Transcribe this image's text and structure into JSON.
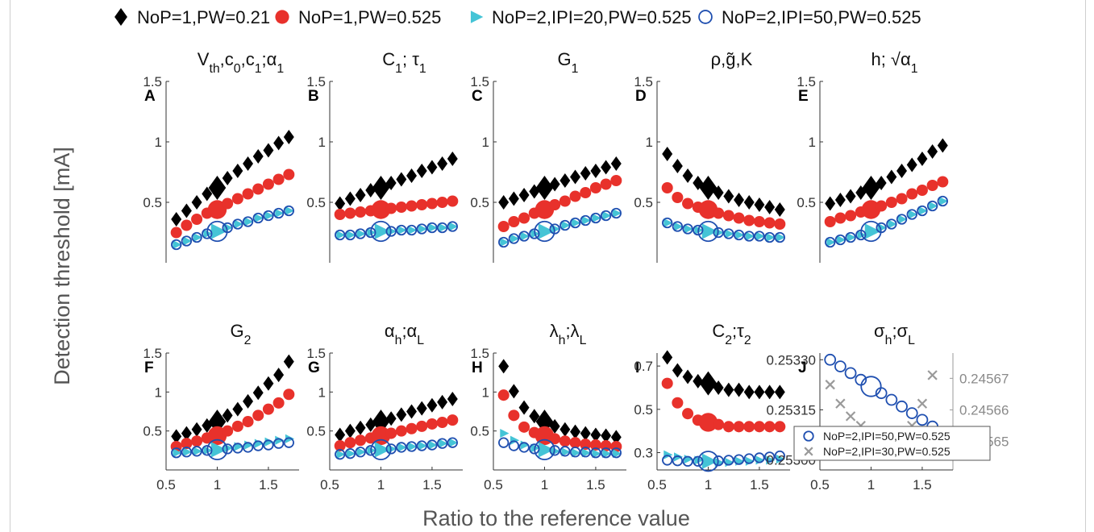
{
  "figure": {
    "ylabel": "Detection threshold [mA]",
    "xlabel": "Ratio to the reference value"
  },
  "legend": {
    "items": [
      {
        "label": "NoP=1,PW=0.21",
        "marker": "diamond",
        "color": "#000000"
      },
      {
        "label": "NoP=1,PW=0.525",
        "marker": "filled-circle",
        "color": "#e8312b"
      },
      {
        "label": "NoP=2,IPI=20,PW=0.525",
        "marker": "triangle",
        "color": "#45c4d6"
      },
      {
        "label": "NoP=2,IPI=50,PW=0.525",
        "marker": "open-circle",
        "color": "#1f4fb0"
      }
    ]
  },
  "chart_data": [
    {
      "type": "scatter",
      "panel": "A",
      "title": "V_th,c_0,c_1;α_1",
      "ylim": [
        0,
        1.5
      ],
      "xlim": [
        0.5,
        1.8
      ],
      "yticks": [
        "1.5",
        "1",
        "0.5"
      ],
      "x": [
        0.6,
        0.7,
        0.8,
        0.9,
        1.0,
        1.1,
        1.2,
        1.3,
        1.4,
        1.5,
        1.6,
        1.7
      ],
      "series": [
        {
          "name": "NoP=1,PW=0.21",
          "values": [
            0.36,
            0.43,
            0.5,
            0.57,
            0.62,
            0.7,
            0.76,
            0.82,
            0.88,
            0.93,
            0.99,
            1.04
          ]
        },
        {
          "name": "NoP=1,PW=0.525",
          "values": [
            0.25,
            0.31,
            0.36,
            0.41,
            0.44,
            0.49,
            0.53,
            0.57,
            0.61,
            0.65,
            0.69,
            0.73
          ]
        },
        {
          "name": "NoP=2,IPI=20,PW=0.525",
          "values": [
            0.15,
            0.18,
            0.21,
            0.24,
            0.26,
            0.29,
            0.32,
            0.34,
            0.37,
            0.39,
            0.41,
            0.43
          ]
        },
        {
          "name": "NoP=2,IPI=50,PW=0.525",
          "values": [
            0.15,
            0.18,
            0.21,
            0.24,
            0.26,
            0.29,
            0.32,
            0.34,
            0.37,
            0.39,
            0.41,
            0.43
          ]
        }
      ]
    },
    {
      "type": "scatter",
      "panel": "B",
      "title": "C_1; τ_1",
      "ylim": [
        0,
        1.5
      ],
      "xlim": [
        0.5,
        1.8
      ],
      "yticks": [
        "1.5",
        "1",
        "0.5"
      ],
      "x": [
        0.6,
        0.7,
        0.8,
        0.9,
        1.0,
        1.1,
        1.2,
        1.3,
        1.4,
        1.5,
        1.6,
        1.7
      ],
      "series": [
        {
          "name": "NoP=1,PW=0.21",
          "values": [
            0.49,
            0.53,
            0.56,
            0.6,
            0.62,
            0.66,
            0.69,
            0.72,
            0.76,
            0.79,
            0.82,
            0.86
          ]
        },
        {
          "name": "NoP=1,PW=0.525",
          "values": [
            0.4,
            0.41,
            0.42,
            0.43,
            0.44,
            0.45,
            0.46,
            0.47,
            0.48,
            0.49,
            0.5,
            0.51
          ]
        },
        {
          "name": "NoP=2,IPI=20,PW=0.525",
          "values": [
            0.23,
            0.23,
            0.24,
            0.25,
            0.26,
            0.26,
            0.27,
            0.27,
            0.28,
            0.29,
            0.29,
            0.3
          ]
        },
        {
          "name": "NoP=2,IPI=50,PW=0.525",
          "values": [
            0.23,
            0.23,
            0.24,
            0.25,
            0.26,
            0.26,
            0.27,
            0.27,
            0.28,
            0.29,
            0.29,
            0.3
          ]
        }
      ]
    },
    {
      "type": "scatter",
      "panel": "C",
      "title": "G_1",
      "ylim": [
        0,
        1.5
      ],
      "xlim": [
        0.5,
        1.8
      ],
      "yticks": [
        "1.5",
        "1",
        "0.5"
      ],
      "x": [
        0.6,
        0.7,
        0.8,
        0.9,
        1.0,
        1.1,
        1.2,
        1.3,
        1.4,
        1.5,
        1.6,
        1.7
      ],
      "series": [
        {
          "name": "NoP=1,PW=0.21",
          "values": [
            0.5,
            0.53,
            0.56,
            0.59,
            0.62,
            0.65,
            0.68,
            0.71,
            0.74,
            0.76,
            0.79,
            0.82
          ]
        },
        {
          "name": "NoP=1,PW=0.525",
          "values": [
            0.3,
            0.34,
            0.37,
            0.41,
            0.44,
            0.48,
            0.51,
            0.55,
            0.58,
            0.62,
            0.65,
            0.68
          ]
        },
        {
          "name": "NoP=2,IPI=20,PW=0.525",
          "values": [
            0.17,
            0.2,
            0.22,
            0.24,
            0.26,
            0.28,
            0.31,
            0.33,
            0.35,
            0.37,
            0.39,
            0.41
          ]
        },
        {
          "name": "NoP=2,IPI=50,PW=0.525",
          "values": [
            0.17,
            0.2,
            0.22,
            0.24,
            0.26,
            0.28,
            0.31,
            0.33,
            0.35,
            0.37,
            0.39,
            0.41
          ]
        }
      ]
    },
    {
      "type": "scatter",
      "panel": "D",
      "title": "ρ,g̃,K",
      "ylim": [
        0,
        1.5
      ],
      "xlim": [
        0.5,
        1.8
      ],
      "yticks": [
        "1.5",
        "1",
        "0.5"
      ],
      "x": [
        0.6,
        0.7,
        0.8,
        0.9,
        1.0,
        1.1,
        1.2,
        1.3,
        1.4,
        1.5,
        1.6,
        1.7
      ],
      "series": [
        {
          "name": "NoP=1,PW=0.21",
          "values": [
            0.9,
            0.8,
            0.72,
            0.66,
            0.62,
            0.58,
            0.55,
            0.52,
            0.5,
            0.48,
            0.46,
            0.44
          ]
        },
        {
          "name": "NoP=1,PW=0.525",
          "values": [
            0.62,
            0.54,
            0.49,
            0.46,
            0.44,
            0.41,
            0.39,
            0.37,
            0.35,
            0.34,
            0.33,
            0.32
          ]
        },
        {
          "name": "NoP=2,IPI=20,PW=0.525",
          "values": [
            0.33,
            0.3,
            0.28,
            0.27,
            0.26,
            0.25,
            0.24,
            0.23,
            0.22,
            0.22,
            0.21,
            0.21
          ]
        },
        {
          "name": "NoP=2,IPI=50,PW=0.525",
          "values": [
            0.33,
            0.3,
            0.28,
            0.27,
            0.26,
            0.25,
            0.24,
            0.23,
            0.22,
            0.22,
            0.21,
            0.21
          ]
        }
      ]
    },
    {
      "type": "scatter",
      "panel": "E",
      "title": "h; √α_1",
      "ylim": [
        0,
        1.5
      ],
      "xlim": [
        0.5,
        1.8
      ],
      "yticks": [
        "1.5",
        "1",
        "0.5"
      ],
      "x": [
        0.6,
        0.7,
        0.8,
        0.9,
        1.0,
        1.1,
        1.2,
        1.3,
        1.4,
        1.5,
        1.6,
        1.7
      ],
      "series": [
        {
          "name": "NoP=1,PW=0.21",
          "values": [
            0.49,
            0.52,
            0.55,
            0.58,
            0.62,
            0.66,
            0.71,
            0.76,
            0.81,
            0.86,
            0.92,
            0.97
          ]
        },
        {
          "name": "NoP=1,PW=0.525",
          "values": [
            0.34,
            0.37,
            0.39,
            0.42,
            0.44,
            0.47,
            0.5,
            0.53,
            0.57,
            0.6,
            0.64,
            0.67
          ]
        },
        {
          "name": "NoP=2,IPI=20,PW=0.525",
          "values": [
            0.17,
            0.19,
            0.21,
            0.23,
            0.26,
            0.29,
            0.32,
            0.36,
            0.4,
            0.43,
            0.47,
            0.51
          ]
        },
        {
          "name": "NoP=2,IPI=50,PW=0.525",
          "values": [
            0.17,
            0.19,
            0.21,
            0.23,
            0.26,
            0.29,
            0.32,
            0.36,
            0.4,
            0.43,
            0.47,
            0.51
          ]
        }
      ]
    },
    {
      "type": "scatter",
      "panel": "F",
      "title": "G_2",
      "ylim": [
        0,
        1.5
      ],
      "xlim": [
        0.5,
        1.8
      ],
      "yticks": [
        "1.5",
        "1",
        "0.5"
      ],
      "xticks": [
        "0.5",
        "1",
        "1.5"
      ],
      "x": [
        0.6,
        0.7,
        0.8,
        0.9,
        1.0,
        1.1,
        1.2,
        1.3,
        1.4,
        1.5,
        1.6,
        1.7
      ],
      "series": [
        {
          "name": "NoP=1,PW=0.21",
          "values": [
            0.43,
            0.47,
            0.52,
            0.57,
            0.62,
            0.7,
            0.78,
            0.88,
            0.99,
            1.11,
            1.22,
            1.39
          ]
        },
        {
          "name": "NoP=1,PW=0.525",
          "values": [
            0.3,
            0.34,
            0.37,
            0.41,
            0.44,
            0.5,
            0.56,
            0.62,
            0.7,
            0.78,
            0.86,
            0.97
          ]
        },
        {
          "name": "NoP=2,IPI=20,PW=0.525",
          "values": [
            0.22,
            0.23,
            0.24,
            0.25,
            0.26,
            0.28,
            0.3,
            0.32,
            0.34,
            0.36,
            0.38,
            0.4
          ]
        },
        {
          "name": "NoP=2,IPI=50,PW=0.525",
          "values": [
            0.22,
            0.23,
            0.24,
            0.25,
            0.26,
            0.27,
            0.28,
            0.29,
            0.31,
            0.32,
            0.34,
            0.35
          ]
        }
      ]
    },
    {
      "type": "scatter",
      "panel": "G",
      "title": "α_h;α_L",
      "ylim": [
        0,
        1.5
      ],
      "xlim": [
        0.5,
        1.8
      ],
      "yticks": [
        "1.5",
        "1",
        "0.5"
      ],
      "xticks": [
        "0.5",
        "1",
        "1.5"
      ],
      "x": [
        0.6,
        0.7,
        0.8,
        0.9,
        1.0,
        1.1,
        1.2,
        1.3,
        1.4,
        1.5,
        1.6,
        1.7
      ],
      "series": [
        {
          "name": "NoP=1,PW=0.21",
          "values": [
            0.45,
            0.5,
            0.54,
            0.58,
            0.62,
            0.66,
            0.71,
            0.75,
            0.79,
            0.83,
            0.87,
            0.91
          ]
        },
        {
          "name": "NoP=1,PW=0.525",
          "values": [
            0.31,
            0.35,
            0.38,
            0.41,
            0.44,
            0.47,
            0.5,
            0.53,
            0.56,
            0.59,
            0.61,
            0.64
          ]
        },
        {
          "name": "NoP=2,IPI=20,PW=0.525",
          "values": [
            0.2,
            0.21,
            0.23,
            0.25,
            0.26,
            0.27,
            0.29,
            0.3,
            0.31,
            0.32,
            0.34,
            0.35
          ]
        },
        {
          "name": "NoP=2,IPI=50,PW=0.525",
          "values": [
            0.2,
            0.21,
            0.23,
            0.25,
            0.26,
            0.27,
            0.29,
            0.3,
            0.31,
            0.32,
            0.34,
            0.35
          ]
        }
      ]
    },
    {
      "type": "scatter",
      "panel": "H",
      "title": "λ_h;λ_L",
      "ylim": [
        0,
        1.5
      ],
      "xlim": [
        0.5,
        1.8
      ],
      "yticks": [
        "1.5",
        "1",
        "0.5"
      ],
      "xticks": [
        "0.5",
        "1",
        "1.5"
      ],
      "x": [
        0.6,
        0.7,
        0.8,
        0.9,
        1.0,
        1.1,
        1.2,
        1.3,
        1.4,
        1.5,
        1.6,
        1.7
      ],
      "series": [
        {
          "name": "NoP=1,PW=0.21",
          "values": [
            1.33,
            1.01,
            0.8,
            0.69,
            0.62,
            0.56,
            0.52,
            0.49,
            0.47,
            0.45,
            0.44,
            0.42
          ]
        },
        {
          "name": "NoP=1,PW=0.525",
          "values": [
            0.96,
            0.7,
            0.55,
            0.48,
            0.44,
            0.4,
            0.37,
            0.35,
            0.33,
            0.32,
            0.31,
            0.3
          ]
        },
        {
          "name": "NoP=2,IPI=20,PW=0.525",
          "values": [
            0.47,
            0.38,
            0.32,
            0.28,
            0.26,
            0.24,
            0.23,
            0.22,
            0.22,
            0.21,
            0.21,
            0.21
          ]
        },
        {
          "name": "NoP=2,IPI=50,PW=0.525",
          "values": [
            0.35,
            0.31,
            0.29,
            0.27,
            0.26,
            0.25,
            0.24,
            0.23,
            0.23,
            0.22,
            0.22,
            0.22
          ]
        }
      ]
    },
    {
      "type": "scatter",
      "panel": "I",
      "title": "C_2;τ_2",
      "ylim": [
        0.22,
        0.76
      ],
      "xlim": [
        0.5,
        1.8
      ],
      "yticks": [
        "0.7",
        "0.5",
        "0.3"
      ],
      "xticks": [
        "0.5",
        "1",
        "1.5"
      ],
      "x": [
        0.6,
        0.7,
        0.8,
        0.9,
        1.0,
        1.1,
        1.2,
        1.3,
        1.4,
        1.5,
        1.6,
        1.7
      ],
      "series": [
        {
          "name": "NoP=1,PW=0.21",
          "values": [
            0.74,
            0.68,
            0.65,
            0.63,
            0.62,
            0.6,
            0.59,
            0.59,
            0.58,
            0.58,
            0.58,
            0.58
          ]
        },
        {
          "name": "NoP=1,PW=0.525",
          "values": [
            0.62,
            0.53,
            0.48,
            0.45,
            0.44,
            0.43,
            0.42,
            0.42,
            0.42,
            0.42,
            0.42,
            0.42
          ]
        },
        {
          "name": "NoP=2,IPI=20,PW=0.525",
          "values": [
            0.29,
            0.28,
            0.27,
            0.265,
            0.26,
            0.255,
            0.255,
            0.26,
            0.26,
            0.265,
            0.265,
            0.27
          ]
        },
        {
          "name": "NoP=2,IPI=50,PW=0.525",
          "values": [
            0.265,
            0.262,
            0.26,
            0.26,
            0.26,
            0.262,
            0.265,
            0.268,
            0.272,
            0.276,
            0.28,
            0.285
          ]
        }
      ]
    },
    {
      "type": "scatter",
      "panel": "J",
      "title": "σ_h;σ_L",
      "xlim": [
        0.5,
        1.8
      ],
      "xticks": [
        "0.5",
        "1",
        "1.5"
      ],
      "left_axis": {
        "ylim": [
          0.25297,
          0.25332
        ],
        "ticks": [
          "0.25330",
          "0.25315",
          "0.25300"
        ]
      },
      "right_axis": {
        "ylim": [
          0.245641,
          0.245678
        ],
        "ticks": [
          "0.24567",
          "0.24566",
          "0.24565"
        ]
      },
      "legend": [
        "NoP=2,IPI=50,PW=0.525",
        "NoP=2,IPI=30,PW=0.525"
      ],
      "x": [
        0.6,
        0.7,
        0.8,
        0.9,
        1.0,
        1.1,
        1.2,
        1.3,
        1.4,
        1.5,
        1.6,
        1.7
      ],
      "series": [
        {
          "name": "NoP=2,IPI=50,PW=0.525",
          "axis": "left",
          "values": [
            0.2533,
            0.25328,
            0.25326,
            0.25324,
            0.25322,
            0.2532,
            0.25318,
            0.25316,
            0.25314,
            0.25312,
            0.2531,
            0.25308
          ]
        },
        {
          "name": "NoP=2,IPI=30,PW=0.525",
          "axis": "right",
          "x": [
            0.6,
            0.7,
            0.8,
            0.9,
            1.0,
            1.1,
            1.2,
            1.3,
            1.4,
            1.5,
            1.6
          ],
          "values": [
            0.245668,
            0.245662,
            0.245658,
            0.245655,
            0.245652,
            0.24565,
            0.24565,
            0.245652,
            0.245655,
            0.245662,
            0.245671
          ]
        }
      ]
    }
  ],
  "colors": {
    "black": "#000000",
    "red": "#e8312b",
    "cyan": "#45c4d6",
    "blue": "#1f4fb0",
    "gray": "#9a9a9a"
  }
}
